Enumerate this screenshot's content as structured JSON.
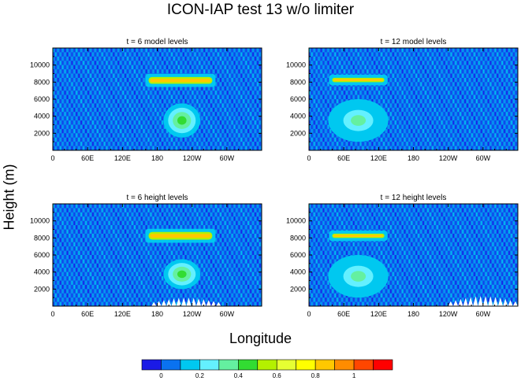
{
  "title": "ICON-IAP test 13 w/o limiter",
  "xlabel": "Longitude",
  "ylabel": "Height (m)",
  "colors": {
    "levels": [
      "#1a1ae6",
      "#0a72f0",
      "#00c8f0",
      "#64f0ff",
      "#64f0a0",
      "#32dc32",
      "#b4f000",
      "#e6ff32",
      "#ffff00",
      "#ffc800",
      "#ff8c00",
      "#ff4600",
      "#ff0000"
    ]
  },
  "chart_data": [
    {
      "type": "heatmap",
      "title": "t = 6 model levels",
      "x_ticks": [
        "0",
        "60E",
        "120E",
        "180",
        "120W",
        "60W"
      ],
      "y_ticks": [
        "2000",
        "4000",
        "6000",
        "8000",
        "10000"
      ],
      "xlim": [
        0,
        360
      ],
      "ylim": [
        0,
        12000
      ],
      "features": [
        {
          "kind": "band",
          "lon": [
            165,
            275
          ],
          "height": [
            7800,
            8600
          ],
          "value": 0.8
        },
        {
          "kind": "blob",
          "lon": [
            195,
            250
          ],
          "height": [
            1500,
            5500
          ],
          "value": 0.4
        }
      ]
    },
    {
      "type": "heatmap",
      "title": "t = 12 model levels",
      "x_ticks": [
        "0",
        "60E",
        "120E",
        "180",
        "120W",
        "60W"
      ],
      "y_ticks": [
        "2000",
        "4000",
        "6000",
        "8000",
        "10000"
      ],
      "xlim": [
        0,
        360
      ],
      "ylim": [
        0,
        12000
      ],
      "features": [
        {
          "kind": "band",
          "lon": [
            40,
            130
          ],
          "height": [
            8000,
            8500
          ],
          "value": 0.8
        },
        {
          "kind": "blob",
          "lon": [
            40,
            130
          ],
          "height": [
            1000,
            6000
          ],
          "value": 0.3
        }
      ]
    },
    {
      "type": "heatmap",
      "title": "t = 6 height levels",
      "x_ticks": [
        "0",
        "60E",
        "120E",
        "180",
        "120W",
        "60W"
      ],
      "y_ticks": [
        "2000",
        "4000",
        "6000",
        "8000",
        "10000"
      ],
      "xlim": [
        0,
        360
      ],
      "ylim": [
        0,
        12000
      ],
      "features": [
        {
          "kind": "band",
          "lon": [
            165,
            275
          ],
          "height": [
            7800,
            8700
          ],
          "value": 0.8
        },
        {
          "kind": "blob",
          "lon": [
            195,
            250
          ],
          "height": [
            2000,
            5500
          ],
          "value": 0.4
        },
        {
          "kind": "topography",
          "lon": [
            170,
            290
          ],
          "height": [
            0,
            1000
          ]
        }
      ]
    },
    {
      "type": "heatmap",
      "title": "t = 12 height levels",
      "x_ticks": [
        "0",
        "60E",
        "120E",
        "180",
        "120W",
        "60W"
      ],
      "y_ticks": [
        "2000",
        "4000",
        "6000",
        "8000",
        "10000"
      ],
      "xlim": [
        0,
        360
      ],
      "ylim": [
        0,
        12000
      ],
      "features": [
        {
          "kind": "band",
          "lon": [
            40,
            130
          ],
          "height": [
            8000,
            8500
          ],
          "value": 0.8
        },
        {
          "kind": "blob",
          "lon": [
            40,
            130
          ],
          "height": [
            1000,
            6000
          ],
          "value": 0.3
        },
        {
          "kind": "topography",
          "lon": [
            240,
            360
          ],
          "height": [
            0,
            1200
          ]
        }
      ]
    }
  ],
  "colorbar": {
    "labels": [
      "0",
      "0.2",
      "0.4",
      "0.6",
      "0.8",
      "1"
    ],
    "boundaries": [
      -0.1,
      0,
      0.1,
      0.2,
      0.3,
      0.4,
      0.5,
      0.6,
      0.7,
      0.8,
      0.9,
      1.0,
      1.1,
      1.2
    ]
  }
}
